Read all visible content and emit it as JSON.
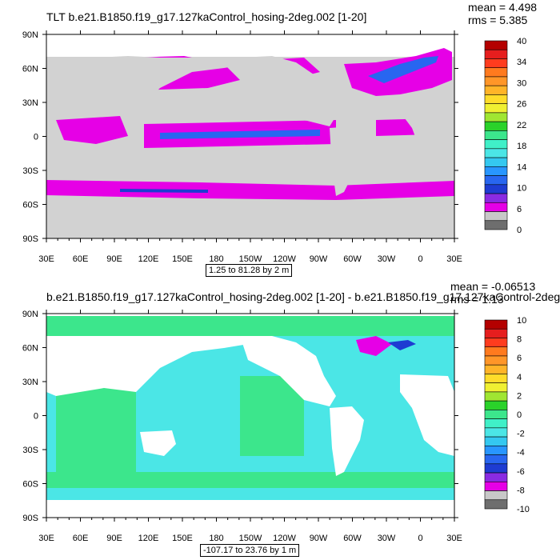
{
  "panels": [
    {
      "title": "TLT b.e21.B1850.f19_g17.127kaControl_hosing-2deg.002 [1-20]",
      "stats": {
        "mean": "mean = 4.498",
        "rms": "rms = 5.385"
      },
      "range_text": "1.25 to 81.28 by 2 m",
      "colorbar_labels": [
        "0",
        "6",
        "10",
        "14",
        "18",
        "22",
        "26",
        "30",
        "34",
        "40"
      ]
    },
    {
      "title": "b.e21.B1850.f19_g17.127kaControl_hosing-2deg.002 [1-20] - b.e21.B1850.f19_g17.127kaControl-2deg.",
      "stats": {
        "mean": "mean = -0.06513",
        "rms": "rms = 1.13"
      },
      "range_text": "-107.17 to 23.76 by 1 m",
      "colorbar_labels": [
        "-10",
        "-8",
        "-6",
        "-4",
        "-2",
        "0",
        "2",
        "4",
        "6",
        "8",
        "10"
      ]
    }
  ],
  "chart_data": [
    {
      "type": "heatmap",
      "title": "TLT b.e21.B1850.f19_g17.127kaControl_hosing-2deg.002 [1-20]",
      "mean": 4.498,
      "rms": 5.385,
      "x_ticks": [
        "30E",
        "60E",
        "90E",
        "120E",
        "150E",
        "180",
        "150W",
        "120W",
        "90W",
        "60W",
        "30W",
        "0",
        "30E"
      ],
      "y_ticks": [
        "90N",
        "60N",
        "30N",
        "0",
        "30S",
        "60S",
        "90S"
      ],
      "x_range": [
        30,
        390
      ],
      "y_range": [
        -90,
        90
      ],
      "field_range": [
        1.25,
        81.28
      ],
      "interval": 2,
      "colorbar_levels": [
        0,
        2,
        4,
        6,
        8,
        10,
        12,
        14,
        16,
        18,
        20,
        22,
        24,
        26,
        28,
        30,
        32,
        34,
        36,
        38,
        40
      ],
      "colorbar_colors": [
        "#6e6e6e",
        "#c8c8c8",
        "#e600e6",
        "#8a2be2",
        "#1e3cd2",
        "#2866f0",
        "#2896ff",
        "#34c8f0",
        "#4be6e6",
        "#40f0c8",
        "#3ce68c",
        "#2ad22a",
        "#a0e632",
        "#f0f032",
        "#ffdc2a",
        "#ffb428",
        "#ff9628",
        "#ff7a1e",
        "#ff3c1e",
        "#e61e1e",
        "#b40000"
      ]
    },
    {
      "type": "heatmap",
      "title": "b.e21.B1850.f19_g17.127kaControl_hosing-2deg.002 [1-20] - b.e21.B1850.f19_g17.127kaControl-2deg.",
      "mean": -0.06513,
      "rms": 1.13,
      "x_ticks": [
        "30E",
        "60E",
        "90E",
        "120E",
        "150E",
        "180",
        "150W",
        "120W",
        "90W",
        "60W",
        "30W",
        "0",
        "30E"
      ],
      "y_ticks": [
        "90N",
        "60N",
        "30N",
        "0",
        "30S",
        "60S",
        "90S"
      ],
      "x_range": [
        30,
        390
      ],
      "y_range": [
        -90,
        90
      ],
      "field_range": [
        -107.17,
        23.76
      ],
      "interval": 1,
      "colorbar_levels": [
        -10,
        -9,
        -8,
        -7,
        -6,
        -5,
        -4,
        -3,
        -2,
        -1,
        0,
        1,
        2,
        3,
        4,
        5,
        6,
        7,
        8,
        9,
        10
      ],
      "colorbar_colors": [
        "#6e6e6e",
        "#c8c8c8",
        "#e600e6",
        "#8a2be2",
        "#1e3cd2",
        "#2866f0",
        "#2896ff",
        "#34c8f0",
        "#4be6e6",
        "#40f0c8",
        "#3ce68c",
        "#2ad22a",
        "#a0e632",
        "#f0f032",
        "#ffdc2a",
        "#ffb428",
        "#ff9628",
        "#ff7a1e",
        "#ff3c1e",
        "#e61e1e",
        "#b40000"
      ]
    }
  ],
  "map_colors": {
    "land": "#d2d2d2",
    "ocean1": "#e600e6",
    "ocean1_band": "#2866f0",
    "ocean2": "#3ce68c",
    "ocean2_alt": "#4be6e6",
    "ocean2_anom": "#e600e6",
    "ocean2_anom_edge": "#1e3cd2"
  }
}
